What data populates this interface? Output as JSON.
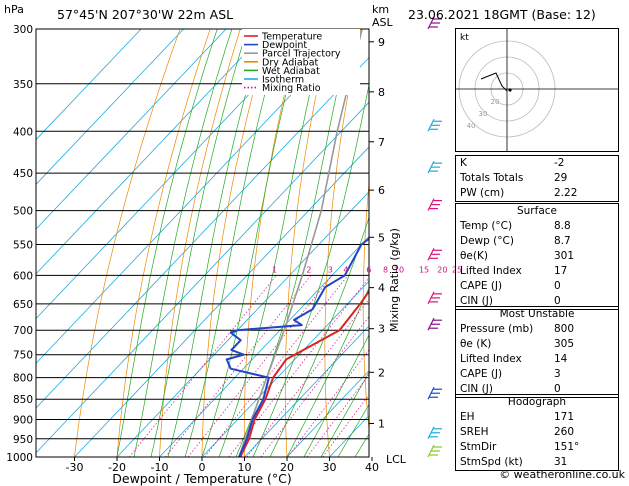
{
  "header": {
    "left_units": "hPa",
    "location": "57°45'N  207°30'W  22m  ASL",
    "km_label": "km",
    "asl_label": "ASL",
    "datetime": "23.06.2021  18GMT  (Base: 12)"
  },
  "chart_data": {
    "type": "skew-t",
    "xlabel": "Dewpoint / Temperature (°C)",
    "ylabel_right": "Mixing Ratio (g/kg)",
    "xlim": [
      -35,
      40
    ],
    "x_ticks": [
      -30,
      -20,
      -10,
      0,
      10,
      20,
      30,
      40
    ],
    "pressure_levels": [
      300,
      350,
      400,
      450,
      500,
      550,
      600,
      650,
      700,
      750,
      800,
      850,
      900,
      950,
      1000
    ],
    "km_ticks": [
      {
        "km": "1",
        "p": 910
      },
      {
        "km": "2",
        "p": 788
      },
      {
        "km": "3",
        "p": 697
      },
      {
        "km": "4",
        "p": 621
      },
      {
        "km": "5",
        "p": 539
      },
      {
        "km": "6",
        "p": 472
      },
      {
        "km": "7",
        "p": 412
      },
      {
        "km": "8",
        "p": 358
      },
      {
        "km": "9",
        "p": 311
      }
    ],
    "lcl_label": "LCL",
    "mixing_ratio_labels": [
      "1",
      "2",
      "3",
      "4",
      "6",
      "8",
      "10",
      "15",
      "20",
      "25"
    ],
    "legend": [
      {
        "name": "Temperature",
        "color": "#dd2222"
      },
      {
        "name": "Dewpoint",
        "color": "#2244cc"
      },
      {
        "name": "Parcel Trajectory",
        "color": "#999999"
      },
      {
        "name": "Dry Adiabat",
        "color": "#ee8800"
      },
      {
        "name": "Wet Adiabat",
        "color": "#22aa22"
      },
      {
        "name": "Isotherm",
        "color": "#22aadd"
      },
      {
        "name": "Mixing Ratio",
        "color": "#cc1188"
      }
    ],
    "temperature": [
      [
        1000,
        9
      ],
      [
        950,
        7
      ],
      [
        900,
        4
      ],
      [
        850,
        2
      ],
      [
        800,
        -1
      ],
      [
        760,
        -2
      ],
      [
        700,
        4
      ],
      [
        650,
        3
      ],
      [
        620,
        2
      ],
      [
        600,
        1.5
      ],
      [
        580,
        -1
      ],
      [
        550,
        -3
      ],
      [
        500,
        -6
      ],
      [
        450,
        -10
      ],
      [
        400,
        -17
      ],
      [
        350,
        -25
      ],
      [
        320,
        -30
      ],
      [
        300,
        -34
      ]
    ],
    "dewpoint": [
      [
        1000,
        8.7
      ],
      [
        950,
        6.5
      ],
      [
        900,
        3.5
      ],
      [
        850,
        1.5
      ],
      [
        800,
        -2
      ],
      [
        780,
        -13
      ],
      [
        760,
        -16
      ],
      [
        750,
        -13
      ],
      [
        740,
        -17
      ],
      [
        720,
        -17
      ],
      [
        705,
        -21
      ],
      [
        700,
        -20
      ],
      [
        690,
        -6
      ],
      [
        680,
        -9
      ],
      [
        660,
        -7
      ],
      [
        620,
        -9
      ],
      [
        610,
        -8
      ],
      [
        600,
        -7
      ],
      [
        550,
        -10
      ],
      [
        500,
        -7
      ],
      [
        450,
        -12
      ],
      [
        400,
        -20
      ],
      [
        350,
        -30
      ],
      [
        300,
        -35
      ]
    ],
    "parcel": [
      [
        1000,
        8.7
      ],
      [
        900,
        3.3
      ],
      [
        800,
        -2.5
      ],
      [
        700,
        -9
      ],
      [
        600,
        -17
      ],
      [
        500,
        -27
      ],
      [
        400,
        -41
      ],
      [
        300,
        -58
      ]
    ],
    "wind_barbs": [
      {
        "p": 1000,
        "color": "#88cc22"
      },
      {
        "p": 950,
        "color": "#22aadd"
      },
      {
        "p": 850,
        "color": "#2244cc"
      },
      {
        "p": 700,
        "color": "#881188"
      },
      {
        "p": 650,
        "color": "#dd1177"
      },
      {
        "p": 575,
        "color": "#dd1177"
      },
      {
        "p": 500,
        "color": "#dd1177"
      },
      {
        "p": 450,
        "color": "#22aadd"
      },
      {
        "p": 400,
        "color": "#22aadd"
      },
      {
        "p": 300,
        "color": "#881188"
      }
    ]
  },
  "hodograph": {
    "label": "kt",
    "rings": [
      "20",
      "30",
      "40"
    ]
  },
  "indices": [
    {
      "label": "K",
      "value": "-2"
    },
    {
      "label": "Totals Totals",
      "value": "29"
    },
    {
      "label": "PW (cm)",
      "value": "2.22"
    }
  ],
  "surface": {
    "title": "Surface",
    "rows": [
      {
        "label": "Temp (°C)",
        "value": "8.8"
      },
      {
        "label": "Dewp (°C)",
        "value": "8.7"
      },
      {
        "label": "θe(K)",
        "value": "301"
      },
      {
        "label": "Lifted Index",
        "value": "17"
      },
      {
        "label": "CAPE (J)",
        "value": "0"
      },
      {
        "label": "CIN (J)",
        "value": "0"
      }
    ]
  },
  "unstable": {
    "title": "Most Unstable",
    "rows": [
      {
        "label": "Pressure (mb)",
        "value": "800"
      },
      {
        "label": "θe (K)",
        "value": "305"
      },
      {
        "label": "Lifted Index",
        "value": "14"
      },
      {
        "label": "CAPE (J)",
        "value": "3"
      },
      {
        "label": "CIN (J)",
        "value": "0"
      }
    ]
  },
  "hodo_table": {
    "title": "Hodograph",
    "rows": [
      {
        "label": "EH",
        "value": "171"
      },
      {
        "label": "SREH",
        "value": "260"
      },
      {
        "label": "StmDir",
        "value": "151°"
      },
      {
        "label": "StmSpd (kt)",
        "value": "31"
      }
    ]
  },
  "footer": "© weatheronline.co.uk"
}
